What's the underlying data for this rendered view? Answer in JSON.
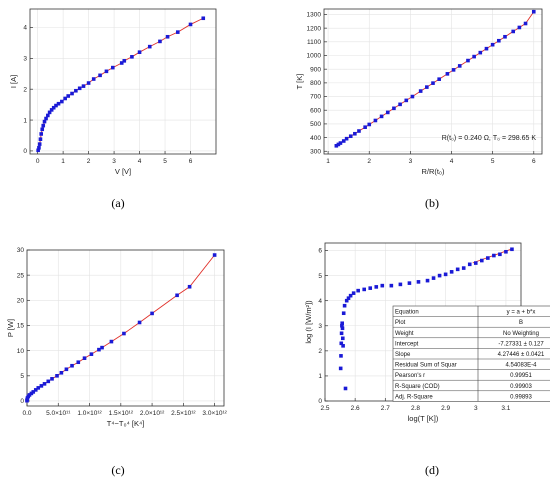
{
  "colors": {
    "line": "#e0302a",
    "marker": "#1a1ad6",
    "grid": "#e3e3e3"
  },
  "panel_captions": [
    "(a)",
    "(b)",
    "(c)",
    "(d)"
  ],
  "chart_data": [
    {
      "type": "scatter",
      "id": "a",
      "xlabel": "V [V]",
      "ylabel": "I [A]",
      "xlim": [
        -0.3,
        7
      ],
      "ylim": [
        -0.1,
        4.6
      ],
      "xticks": [
        0,
        1,
        2,
        3,
        4,
        5,
        6
      ],
      "yticks": [
        0,
        1,
        2,
        3,
        4
      ],
      "grid": true,
      "series": [
        {
          "x": [
            0.02,
            0.05,
            0.08,
            0.11,
            0.14,
            0.18,
            0.22,
            0.27,
            0.33,
            0.4,
            0.47,
            0.55,
            0.63,
            0.72,
            0.82,
            0.95,
            1.08,
            1.2,
            1.35,
            1.5,
            1.65,
            1.8,
            2.0,
            2.2,
            2.45,
            2.7,
            2.95,
            3.3,
            3.4,
            3.7,
            4.0,
            4.4,
            4.8,
            5.1,
            5.5,
            6.0,
            6.5
          ],
          "y": [
            0.02,
            0.1,
            0.22,
            0.38,
            0.55,
            0.7,
            0.82,
            0.95,
            1.05,
            1.15,
            1.25,
            1.33,
            1.4,
            1.47,
            1.53,
            1.6,
            1.7,
            1.78,
            1.86,
            1.95,
            2.03,
            2.1,
            2.2,
            2.33,
            2.45,
            2.58,
            2.7,
            2.85,
            2.92,
            3.05,
            3.2,
            3.38,
            3.55,
            3.7,
            3.85,
            4.1,
            4.3
          ]
        }
      ]
    },
    {
      "type": "scatter",
      "id": "b",
      "xlabel": "R/R(t₀)",
      "ylabel": "T [K]",
      "xlim": [
        0.9,
        6.2
      ],
      "ylim": [
        280,
        1340
      ],
      "xticks": [
        1,
        2,
        3,
        4,
        5,
        6
      ],
      "yticks": [
        300,
        400,
        500,
        600,
        700,
        800,
        900,
        1000,
        1100,
        1200,
        1300
      ],
      "grid": true,
      "annotation": "R(t₀) = 0.240 Ω, T₀ = 298.65 K",
      "series": [
        {
          "x": [
            1.2,
            1.25,
            1.3,
            1.38,
            1.45,
            1.55,
            1.65,
            1.75,
            1.9,
            2.0,
            2.15,
            2.3,
            2.45,
            2.6,
            2.75,
            2.9,
            3.05,
            3.25,
            3.4,
            3.55,
            3.7,
            3.9,
            4.05,
            4.2,
            4.4,
            4.55,
            4.7,
            4.85,
            5.0,
            5.15,
            5.3,
            5.5,
            5.65,
            5.8,
            6.0
          ],
          "y": [
            340,
            350,
            360,
            375,
            392,
            410,
            428,
            448,
            476,
            496,
            525,
            555,
            584,
            614,
            643,
            672,
            700,
            740,
            769,
            798,
            827,
            866,
            895,
            924,
            963,
            992,
            1021,
            1050,
            1079,
            1108,
            1137,
            1176,
            1205,
            1234,
            1320
          ]
        }
      ]
    },
    {
      "type": "line",
      "id": "c",
      "xlabel": "T⁴−T₀⁴ [K⁴]",
      "ylabel": "P [W]",
      "xlim": [
        0,
        3150000000000.0
      ],
      "ylim": [
        -1,
        30
      ],
      "xtick_values": [
        0,
        500000000000.0,
        1000000000000.0,
        1500000000000.0,
        2000000000000.0,
        2500000000000.0,
        3000000000000.0
      ],
      "xtick_labels": [
        "0.0",
        "5.0×10¹¹",
        "1.0×10¹²",
        "1.5×10¹²",
        "2.0×10¹²",
        "2.5×10¹²",
        "3.0×10¹²"
      ],
      "yticks": [
        0,
        5,
        10,
        15,
        20,
        25,
        30
      ],
      "grid": true,
      "series": [
        {
          "x": [
            0,
            2000000000.0,
            8000000000.0,
            20000000000.0,
            40000000000.0,
            70000000000.0,
            100000000000.0,
            140000000000.0,
            180000000000.0,
            230000000000.0,
            280000000000.0,
            340000000000.0,
            400000000000.0,
            480000000000.0,
            550000000000.0,
            630000000000.0,
            720000000000.0,
            820000000000.0,
            920000000000.0,
            1030000000000.0,
            1150000000000.0,
            1200000000000.0,
            1350000000000.0,
            1550000000000.0,
            1800000000000.0,
            2000000000000.0,
            2400000000000.0,
            2600000000000.0,
            3000000000000.0
          ],
          "y": [
            0.05,
            0.3,
            0.6,
            0.9,
            1.2,
            1.5,
            1.8,
            2.2,
            2.6,
            3.0,
            3.4,
            3.9,
            4.4,
            5.0,
            5.6,
            6.3,
            7.0,
            7.7,
            8.5,
            9.3,
            10.2,
            10.6,
            11.8,
            13.4,
            15.6,
            17.4,
            21.0,
            22.7,
            29.0
          ]
        }
      ]
    },
    {
      "type": "scatter",
      "id": "d",
      "xlabel": "log(T [K])",
      "ylabel": "log (I [W/m²])",
      "xlim": [
        2.5,
        3.15
      ],
      "ylim": [
        0,
        6.3
      ],
      "xticks": [
        2.5,
        2.6,
        2.7,
        2.8,
        2.9,
        3.0,
        3.1
      ],
      "yticks": [
        0,
        1,
        2,
        3,
        4,
        5,
        6
      ],
      "grid": true,
      "fit_line": {
        "x0": 2.99,
        "x1": 3.12,
        "intercept": -7.27331,
        "slope": 4.27446
      },
      "series": [
        {
          "x": [
            2.552,
            2.553,
            2.554,
            2.555,
            2.556,
            2.557,
            2.558,
            2.559,
            2.56,
            2.562,
            2.565,
            2.568,
            2.572,
            2.578,
            2.585,
            2.595,
            2.61,
            2.63,
            2.65,
            2.67,
            2.69,
            2.72,
            2.75,
            2.78,
            2.81,
            2.84,
            2.86,
            2.88,
            2.9,
            2.92,
            2.94,
            2.96,
            2.98,
            3.0,
            3.02,
            3.04,
            3.06,
            3.08,
            3.1,
            3.12
          ],
          "y": [
            1.3,
            1.8,
            2.3,
            2.7,
            3.0,
            3.1,
            2.9,
            2.5,
            2.2,
            3.5,
            3.8,
            0.5,
            4.0,
            4.1,
            4.2,
            4.3,
            4.4,
            4.45,
            4.5,
            4.55,
            4.6,
            4.6,
            4.65,
            4.7,
            4.75,
            4.8,
            4.9,
            5.0,
            5.05,
            5.15,
            5.25,
            5.3,
            5.45,
            5.5,
            5.6,
            5.7,
            5.8,
            5.85,
            5.95,
            6.05
          ]
        }
      ],
      "table": [
        [
          "Equation",
          "y = a + b*x"
        ],
        [
          "Plot",
          "B"
        ],
        [
          "Weight",
          "No Weighting"
        ],
        [
          "Intercept",
          "-7.27331 ± 0.127"
        ],
        [
          "Slope",
          "4.27446 ± 0.0421"
        ],
        [
          "Residual Sum of Squar",
          "4.54083E-4"
        ],
        [
          "Pearson's r",
          "0.99951"
        ],
        [
          "R-Square (COD)",
          "0.99903"
        ],
        [
          "Adj. R-Square",
          "0.99893"
        ]
      ]
    }
  ]
}
